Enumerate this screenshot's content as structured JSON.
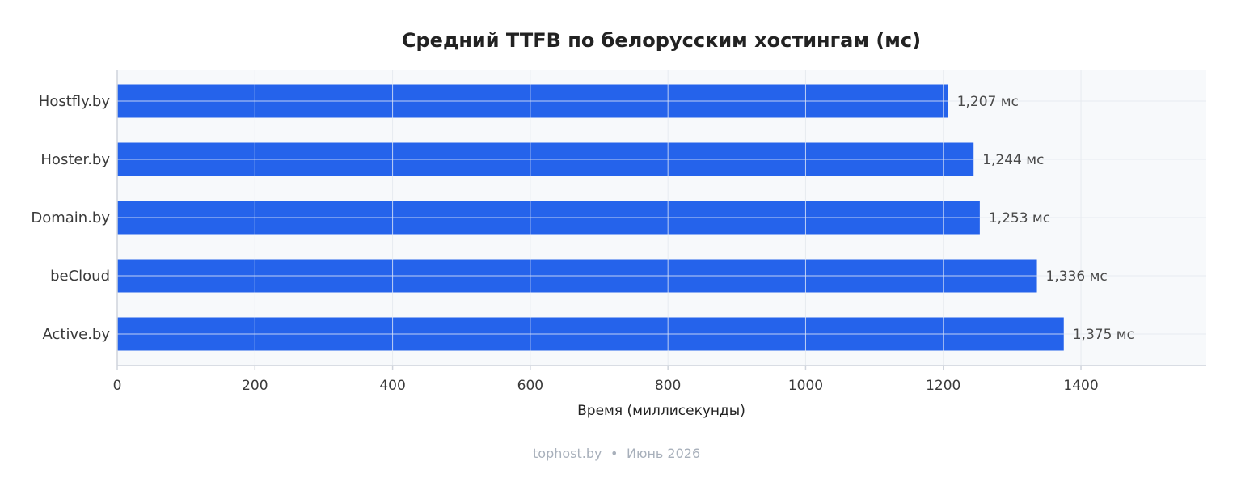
{
  "colors": {
    "bar": "#2563eb",
    "plot_background": "#f7f9fb",
    "grid": "#e7ebf0",
    "bar_grid": "#d9e2f7",
    "axis": "#cfd4dc"
  },
  "chart_data": {
    "type": "bar",
    "orientation": "horizontal",
    "title": "Средний TTFB по белорусским хостингам (мс)",
    "xlabel": "Время (миллисекунды)",
    "ylabel": "",
    "categories": [
      "Hostfly.by",
      "Hoster.by",
      "Domain.by",
      "beCloud",
      "Active.by"
    ],
    "values": [
      1207,
      1244,
      1253,
      1336,
      1375
    ],
    "value_labels": [
      "1,207 мс",
      "1,244 мс",
      "1,253 мс",
      "1,336 мс",
      "1,375 мс"
    ],
    "xlim": [
      0,
      1582
    ],
    "xticks": [
      0,
      200,
      400,
      600,
      800,
      1000,
      1200,
      1400
    ],
    "xtick_labels": [
      "0",
      "200",
      "400",
      "600",
      "800",
      "1000",
      "1200",
      "1400"
    ],
    "grid": true
  },
  "footer": {
    "source": "tophost.by",
    "separator": "•",
    "date": "Июнь 2026"
  }
}
